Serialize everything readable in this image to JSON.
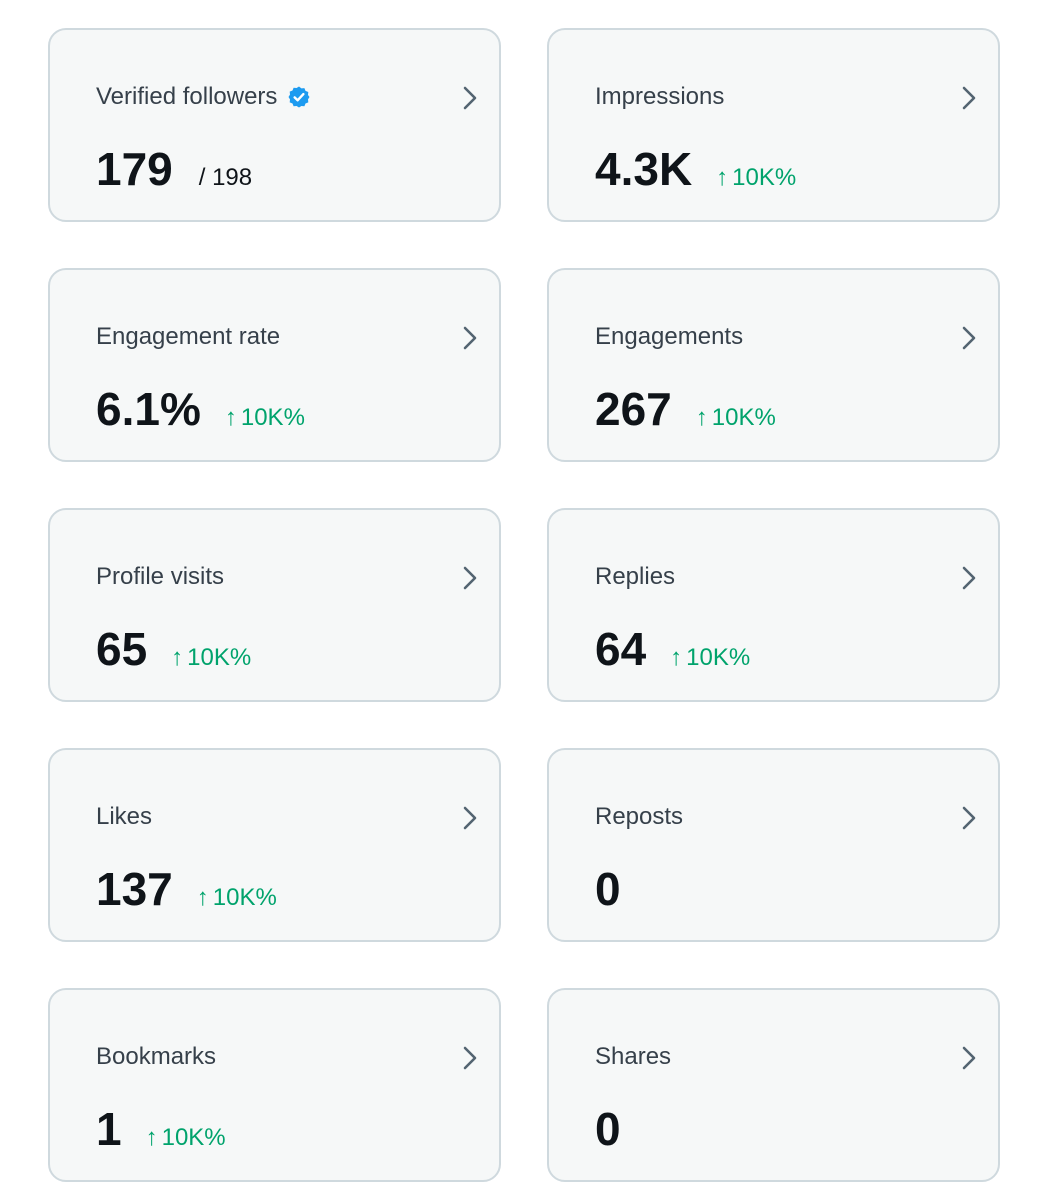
{
  "icons": {
    "verified": "verified-badge-icon",
    "chevron": "chevron-right-icon",
    "up_arrow": "arrow-up-icon"
  },
  "colors": {
    "card_bg": "#f6f8f8",
    "card_border": "#cfd9de",
    "positive_change": "#00a36c",
    "verified_blue": "#1d9bf0"
  },
  "cards": [
    {
      "label": "Verified followers",
      "value": "179",
      "total": "/ 198",
      "change": ""
    },
    {
      "label": "Impressions",
      "value": "4.3K",
      "change": "10K%"
    },
    {
      "label": "Engagement rate",
      "value": "6.1%",
      "change": "10K%"
    },
    {
      "label": "Engagements",
      "value": "267",
      "change": "10K%"
    },
    {
      "label": "Profile visits",
      "value": "65",
      "change": "10K%"
    },
    {
      "label": "Replies",
      "value": "64",
      "change": "10K%"
    },
    {
      "label": "Likes",
      "value": "137",
      "change": "10K%"
    },
    {
      "label": "Reposts",
      "value": "0",
      "change": ""
    },
    {
      "label": "Bookmarks",
      "value": "1",
      "change": "10K%"
    },
    {
      "label": "Shares",
      "value": "0",
      "change": ""
    }
  ]
}
